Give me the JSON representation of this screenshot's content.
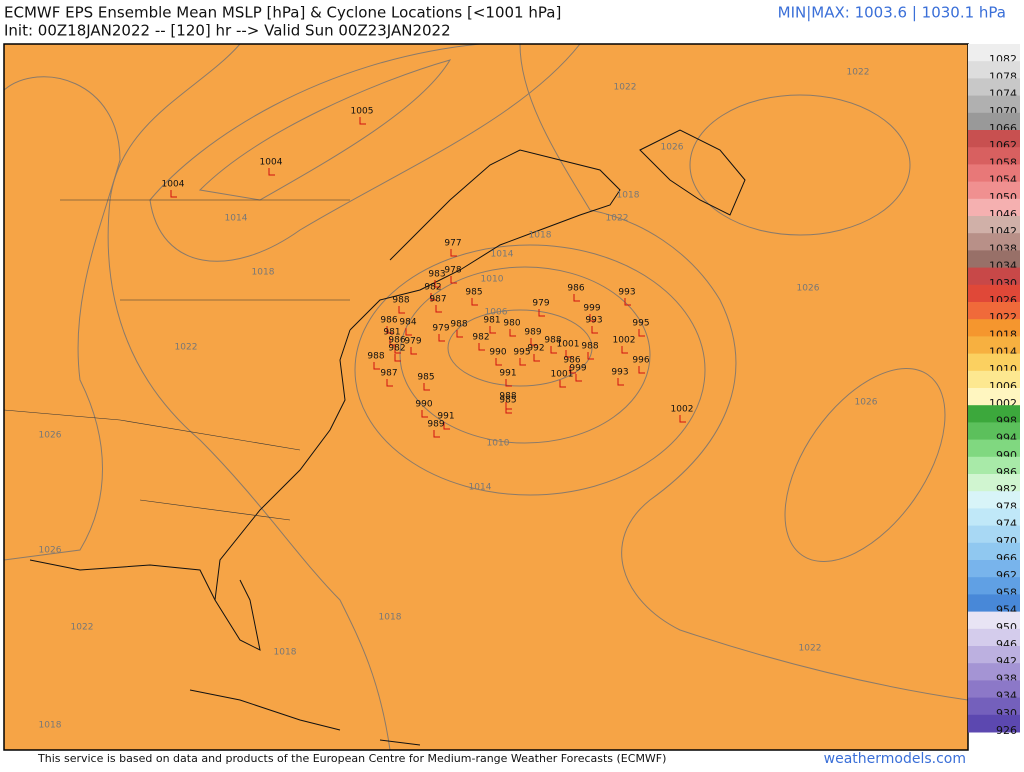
{
  "header": {
    "title": "ECMWF EPS Ensemble Mean MSLP [hPa] & Cyclone Locations [<1001 hPa]",
    "subtitle": "Init: 00Z18JAN2022 -- [120] hr --> Valid Sun 00Z23JAN2022",
    "minmax": "MIN|MAX: 1003.6 | 1030.1 hPa"
  },
  "footer": {
    "credit": "This service is based on data and products of the European Centre for Medium-range Weather Forecasts (ECMWF)",
    "brand": "weathermodels.com"
  },
  "colorbar": {
    "labels": [
      1082,
      1078,
      1074,
      1070,
      1066,
      1062,
      1058,
      1054,
      1050,
      1046,
      1042,
      1038,
      1034,
      1030,
      1026,
      1022,
      1018,
      1014,
      1010,
      1006,
      1002,
      998,
      994,
      990,
      986,
      982,
      978,
      974,
      970,
      966,
      962,
      958,
      954,
      950,
      946,
      942,
      938,
      934,
      930,
      926
    ]
  },
  "contour_labels": [
    1022,
    1022,
    1018,
    1026,
    1022,
    1018,
    1014,
    1010,
    1006,
    1010,
    1014,
    1026,
    1026,
    1022,
    1018,
    1018,
    1018,
    1022,
    1026,
    1026,
    1022,
    1018,
    1014
  ],
  "cyclones": [
    1005,
    1004,
    1004,
    977,
    978,
    983,
    982,
    987,
    988,
    985,
    979,
    986,
    993,
    999,
    993,
    995,
    981,
    980,
    988,
    986,
    984,
    979,
    981,
    989,
    982,
    986,
    979,
    982,
    988,
    990,
    995,
    992,
    988,
    1001,
    988,
    1002,
    986,
    999,
    996,
    993,
    991,
    1001,
    987,
    985,
    988,
    985,
    990,
    991,
    989,
    1002
  ]
}
